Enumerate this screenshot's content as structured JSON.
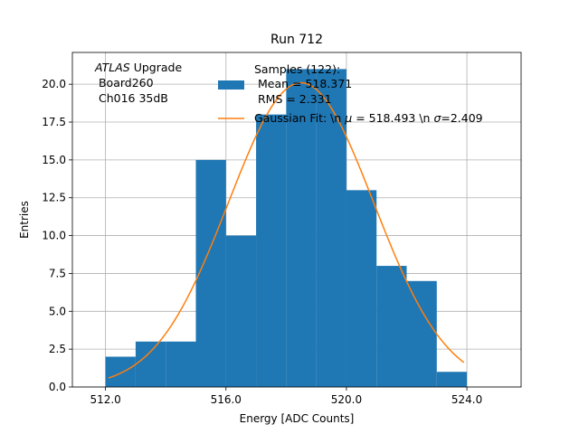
{
  "chart_data": {
    "type": "bar",
    "title": "Run 712",
    "xlabel": "Energy [ADC Counts]",
    "ylabel": "Entries",
    "xlim": [
      510.9,
      525.8
    ],
    "ylim": [
      0,
      22.1
    ],
    "xticks": [
      512,
      516,
      520,
      524
    ],
    "xtick_labels": [
      "512.0",
      "516.0",
      "520.0",
      "524.0"
    ],
    "yticks": [
      0,
      2.5,
      5,
      7.5,
      10,
      12.5,
      15,
      17.5,
      20
    ],
    "ytick_labels": [
      "0.0",
      "2.5",
      "5.0",
      "7.5",
      "10.0",
      "12.5",
      "15.0",
      "17.5",
      "20.0"
    ],
    "grid": true,
    "histogram": {
      "bin_edges": [
        512,
        513,
        514,
        515,
        516,
        517,
        518,
        519,
        520,
        521,
        522,
        523,
        524
      ],
      "counts": [
        2,
        3,
        3,
        15,
        10,
        18,
        21,
        21,
        13,
        8,
        7,
        1
      ],
      "color": "#1f77b4"
    },
    "fit": {
      "mu": 518.493,
      "sigma": 2.409,
      "x_range": [
        512.1,
        523.9
      ],
      "peak": 20.1,
      "color": "#ff7f0e"
    },
    "annotation": {
      "line1_italic": "ATLAS",
      "line1_rest": " Upgrade",
      "line2": " Board260",
      "line3": " Ch016 35dB"
    },
    "legend": {
      "placement": "top-right",
      "entries": [
        {
          "kind": "patch",
          "lines": [
            "Samples (122):",
            " Mean = 518.371",
            " RMS = 2.331"
          ],
          "color": "#1f77b4"
        },
        {
          "kind": "line",
          "label_prefix": "Gaussian Fit: \\n ",
          "mu_symbol": "μ",
          "mu_text": " = 518.493 \\n ",
          "sigma_symbol": "σ",
          "sigma_text": "=2.409",
          "color": "#ff7f0e"
        }
      ]
    }
  }
}
